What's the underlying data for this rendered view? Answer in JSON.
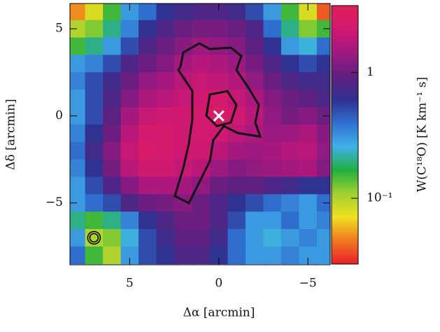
{
  "chart_data": {
    "type": "heatmap",
    "xlabel": "Δα [arcmin]",
    "ylabel": "Δδ [arcmin]",
    "colorbar_label": "W(C¹⁸O)  [K km⁻¹ s]",
    "xlim": [
      8.35,
      -6.25
    ],
    "ylim": [
      -8.55,
      6.45
    ],
    "xticks": [
      5,
      0,
      {
        "value": -5,
        "label": "−5"
      }
    ],
    "yticks": [
      {
        "value": -5,
        "label": "−5"
      },
      0,
      5
    ],
    "x": [
      8,
      7,
      6,
      5,
      4,
      3,
      2,
      1,
      0,
      -1,
      -2,
      -3,
      -4,
      -5,
      -6
    ],
    "y": [
      6,
      5,
      4,
      3,
      2,
      1,
      0,
      -1,
      -2,
      -3,
      -4,
      -5,
      -6,
      -7,
      -8
    ],
    "z": [
      [
        0.05,
        0.08,
        0.15,
        0.3,
        0.4,
        0.6,
        0.7,
        0.8,
        0.8,
        0.7,
        0.5,
        0.3,
        0.15,
        0.08,
        0.04
      ],
      [
        0.1,
        0.12,
        0.2,
        0.35,
        0.6,
        0.8,
        1.0,
        1.1,
        1.1,
        1.0,
        0.8,
        0.4,
        0.2,
        0.12,
        0.15
      ],
      [
        0.15,
        0.2,
        0.3,
        0.5,
        0.8,
        1.0,
        1.2,
        1.4,
        1.3,
        1.2,
        0.9,
        0.6,
        0.3,
        0.25,
        0.4
      ],
      [
        0.3,
        0.35,
        0.5,
        0.8,
        1.0,
        1.2,
        1.5,
        1.7,
        1.6,
        1.4,
        1.1,
        0.8,
        0.6,
        0.5,
        0.6
      ],
      [
        0.35,
        0.5,
        0.7,
        1.0,
        1.3,
        1.5,
        1.8,
        2.0,
        1.9,
        1.7,
        1.3,
        1.0,
        0.8,
        0.7,
        0.7
      ],
      [
        0.3,
        0.5,
        0.8,
        1.2,
        1.6,
        1.8,
        2.0,
        2.2,
        2.4,
        2.0,
        1.6,
        1.2,
        1.0,
        0.9,
        0.8
      ],
      [
        0.3,
        0.5,
        0.9,
        1.5,
        2.0,
        2.2,
        2.2,
        2.4,
        2.6,
        2.2,
        1.8,
        1.3,
        1.1,
        1.2,
        1.0
      ],
      [
        0.35,
        0.6,
        1.0,
        1.8,
        2.4,
        2.4,
        2.2,
        2.3,
        2.2,
        1.9,
        1.6,
        1.4,
        1.4,
        1.6,
        1.2
      ],
      [
        0.4,
        0.7,
        1.2,
        2.0,
        2.6,
        2.4,
        2.2,
        2.2,
        1.8,
        1.5,
        1.4,
        1.5,
        1.7,
        1.8,
        1.3
      ],
      [
        0.35,
        0.6,
        1.1,
        1.8,
        2.2,
        2.2,
        2.0,
        1.8,
        1.4,
        1.2,
        1.3,
        1.4,
        1.5,
        1.6,
        1.2
      ],
      [
        0.3,
        0.5,
        0.8,
        1.2,
        1.6,
        1.6,
        1.5,
        1.3,
        1.0,
        0.9,
        0.9,
        0.8,
        0.7,
        0.6,
        0.6
      ],
      [
        0.3,
        0.4,
        0.5,
        0.8,
        1.0,
        1.1,
        1.2,
        1.0,
        0.8,
        0.6,
        0.5,
        0.4,
        0.35,
        0.3,
        0.4
      ],
      [
        0.2,
        0.15,
        0.2,
        0.35,
        0.6,
        0.8,
        1.0,
        1.0,
        0.8,
        0.5,
        0.3,
        0.3,
        0.4,
        0.3,
        0.35
      ],
      [
        0.3,
        0.1,
        0.12,
        0.25,
        0.5,
        0.7,
        0.9,
        0.9,
        0.7,
        0.4,
        0.3,
        0.25,
        0.3,
        0.35,
        0.3
      ],
      [
        0.4,
        0.15,
        0.1,
        0.3,
        0.5,
        0.6,
        0.8,
        0.8,
        0.6,
        0.4,
        0.3,
        0.3,
        0.35,
        0.3,
        0.3
      ]
    ],
    "zlim": [
      0.03,
      3.4
    ],
    "zscale": "log",
    "zticks": [
      {
        "value": 0.1,
        "label": "10⁻¹"
      },
      1
    ],
    "colormap": [
      "#e8202a",
      "#f07820",
      "#f0e020",
      "#a0d030",
      "#20b040",
      "#40b0e8",
      "#3070d0",
      "#303090",
      "#602080",
      "#a01880",
      "#d01870",
      "#e0205a"
    ],
    "markers": [
      {
        "x": 0,
        "y": 0,
        "symbol": "x",
        "color": "#ffffff"
      },
      {
        "x": 7,
        "y": -7,
        "symbol": "circle",
        "color": "#000000"
      }
    ]
  }
}
